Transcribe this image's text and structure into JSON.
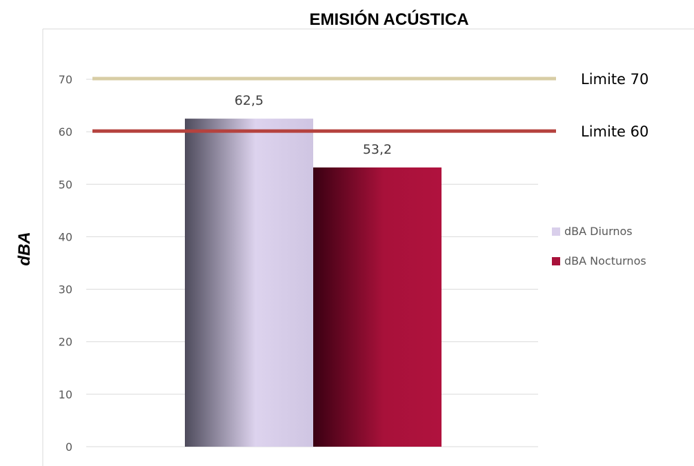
{
  "chart_data": {
    "type": "bar",
    "title": "EMISIÓN ACÚSTICA",
    "ylabel": "dBA",
    "xlabel": "",
    "categories": [
      ""
    ],
    "ylim": [
      0,
      70
    ],
    "yticks": [
      0,
      10,
      20,
      30,
      40,
      50,
      60,
      70
    ],
    "grid": true,
    "legend_position": "right",
    "series": [
      {
        "name": "dBA Diurnos",
        "values": [
          62.5
        ],
        "label": "62,5",
        "color": "#D9CFEB",
        "edge_color": "#4A4758"
      },
      {
        "name": "dBA Nocturnos",
        "values": [
          53.2
        ],
        "label": "53,2",
        "color": "#A8113A",
        "edge_color": "#3D0014"
      }
    ],
    "reference_lines": [
      {
        "label": "Limite 70",
        "value": 70,
        "color": "#D8CDA5"
      },
      {
        "label": "Limite 60",
        "value": 60,
        "color": "#B5423E"
      }
    ]
  }
}
